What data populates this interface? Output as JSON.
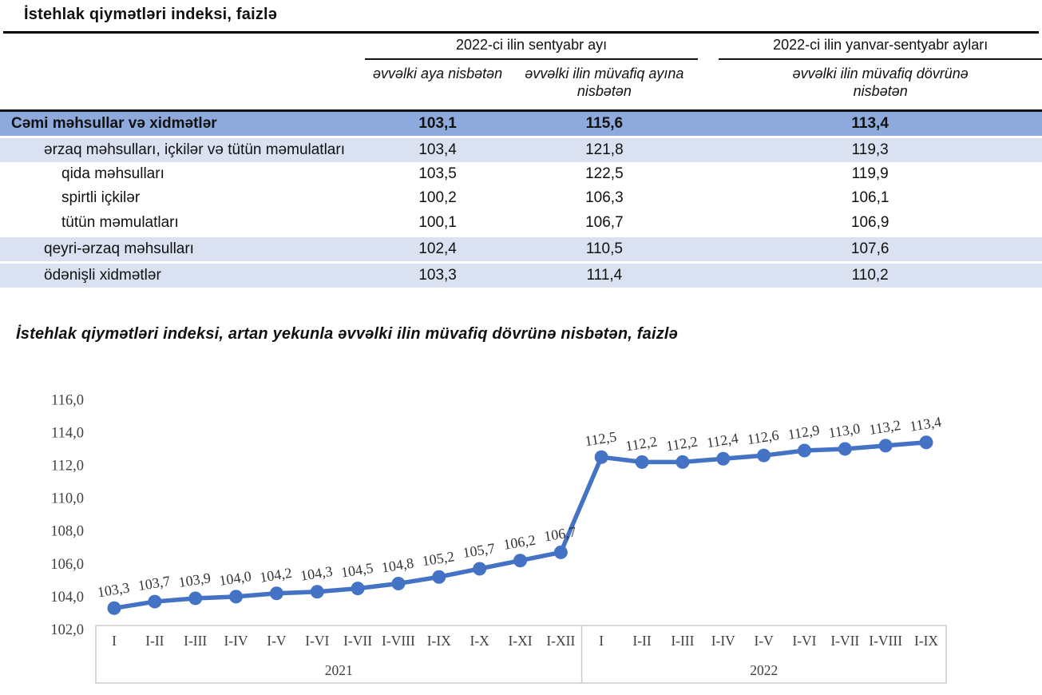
{
  "table": {
    "title": "İstehlak qiymətləri indeksi, faizlə",
    "group_headers": [
      "2022-ci ilin sentyabr ayı",
      "2022-ci ilin yanvar-sentyabr ayları"
    ],
    "sub_headers": [
      "əvvəlki aya nisbətən",
      "əvvəlki ilin müvafiq ayına nisbətən",
      "əvvəlki ilin müvafiq dövrünə nisbətən"
    ],
    "rows": [
      {
        "label": "Cəmi məhsullar və xidmətlər",
        "values": [
          "103,1",
          "115,6",
          "113,4"
        ]
      },
      {
        "label": "ərzaq məhsulları, içkilər və tütün məmulatları",
        "values": [
          "103,4",
          "121,8",
          "119,3"
        ]
      },
      {
        "label": "qida məhsulları",
        "values": [
          "103,5",
          "122,5",
          "119,9"
        ]
      },
      {
        "label": "spirtli içkilər",
        "values": [
          "100,2",
          "106,3",
          "106,1"
        ]
      },
      {
        "label": "tütün məmulatları",
        "values": [
          "100,1",
          "106,7",
          "106,9"
        ]
      },
      {
        "label": "qeyri-ərzaq məhsulları",
        "values": [
          "102,4",
          "110,5",
          "107,6"
        ]
      },
      {
        "label": "ödənişli xidmətlər",
        "values": [
          "103,3",
          "111,4",
          "110,2"
        ]
      }
    ],
    "colors": {
      "total_row_bg": "#8EA9DB",
      "shade_row_bg": "#DAE1F1"
    }
  },
  "chart_data": {
    "type": "line",
    "title": "İstehlak qiymətləri indeksi, artan yekunla əvvəlki ilin müvafiq dövrünə nisbətən, faizlə",
    "categories": [
      "I",
      "I-II",
      "I-III",
      "I-IV",
      "I-V",
      "I-VI",
      "I-VII",
      "I-VIII",
      "I-IX",
      "I-X",
      "I-XI",
      "I-XII",
      "I",
      "I-II",
      "I-III",
      "I-IV",
      "I-V",
      "I-VI",
      "I-VII",
      "I-VIII",
      "I-IX"
    ],
    "values": [
      103.3,
      103.7,
      103.9,
      104.0,
      104.2,
      104.3,
      104.5,
      104.8,
      105.2,
      105.7,
      106.2,
      106.7,
      112.5,
      112.2,
      112.2,
      112.4,
      112.6,
      112.9,
      113.0,
      113.2,
      113.4
    ],
    "point_labels": [
      "103,3",
      "103,7",
      "103,9",
      "104,0",
      "104,2",
      "104,3",
      "104,5",
      "104,8",
      "105,2",
      "105,7",
      "106,2",
      "106,7",
      "112,5",
      "112,2",
      "112,2",
      "112,4",
      "112,6",
      "112,9",
      "113,0",
      "113,2",
      "113,4"
    ],
    "year_groups": [
      {
        "label": "2021",
        "count": 12
      },
      {
        "label": "2022",
        "count": 9
      }
    ],
    "xlabel": "",
    "ylabel": "",
    "ylim": [
      102.0,
      116.0
    ],
    "ytick_step": 2,
    "ytick_labels": [
      "102,0",
      "104,0",
      "106,0",
      "108,0",
      "110,0",
      "112,0",
      "114,0",
      "116,0"
    ],
    "grid": false,
    "legend": "none",
    "line_color": "#4472C4",
    "axis_box_color": "#c9c9c9",
    "tick_text_color": "#3f3f3f",
    "label_text_color": "#333333"
  }
}
